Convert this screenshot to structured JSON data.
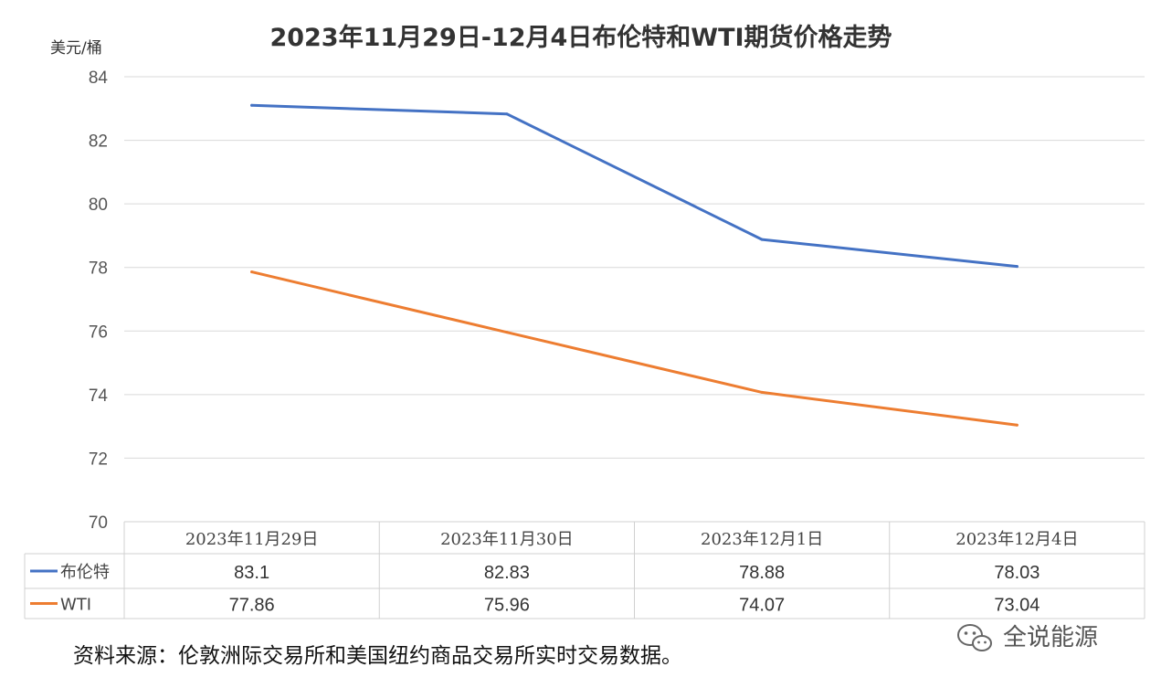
{
  "chart_data": {
    "type": "line",
    "title": "2023年11月29日-12月4日布伦特和WTI期货价格走势",
    "ylabel": "美元/桶",
    "categories": [
      "2023年11月29日",
      "2023年11月30日",
      "2023年12月1日",
      "2023年12月4日"
    ],
    "series": [
      {
        "name": "布伦特",
        "color": "#4472C4",
        "values": [
          83.1,
          82.83,
          78.88,
          78.03
        ]
      },
      {
        "name": "WTI",
        "color": "#ED7D31",
        "values": [
          77.86,
          75.96,
          74.07,
          73.04
        ]
      }
    ],
    "ylim": [
      70,
      84
    ],
    "yticks": [
      70,
      72,
      74,
      76,
      78,
      80,
      82,
      84
    ],
    "grid": true,
    "legend": "data-table"
  },
  "table_values": [
    [
      "83.1",
      "82.83",
      "78.88",
      "78.03"
    ],
    [
      "77.86",
      "75.96",
      "74.07",
      "73.04"
    ]
  ],
  "ytick_labels": [
    "70",
    "72",
    "74",
    "76",
    "78",
    "80",
    "82",
    "84"
  ],
  "source_note": "资料来源：伦敦洲际交易所和美国纽约商品交易所实时交易数据。",
  "watermark": {
    "text": "全说能源",
    "icon": "wechat-icon"
  }
}
